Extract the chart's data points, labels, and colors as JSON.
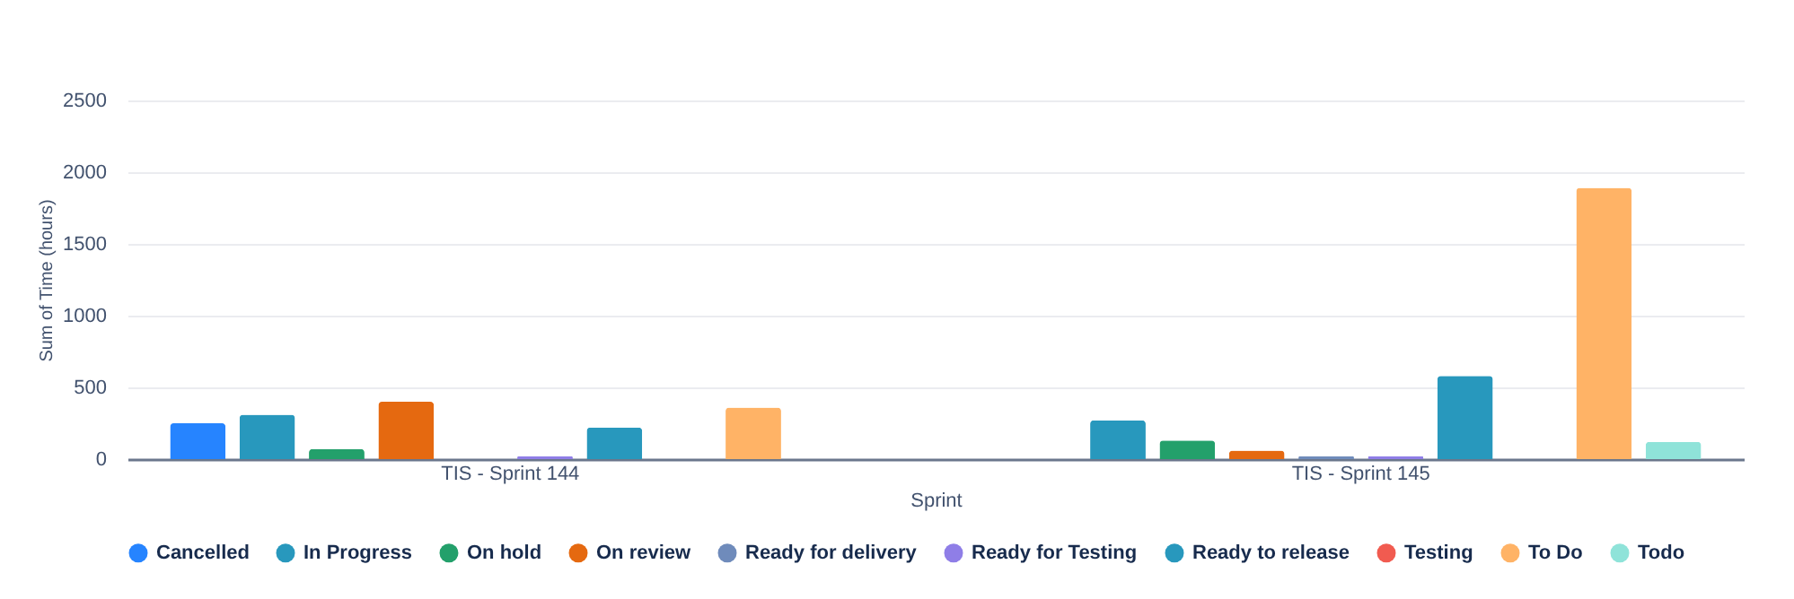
{
  "chart_data": {
    "type": "bar",
    "xlabel": "Sprint",
    "ylabel": "Sum of Time (hours)",
    "categories": [
      "TIS - Sprint 144",
      "TIS - Sprint 145"
    ],
    "series": [
      {
        "name": "Cancelled",
        "color": "#2684ff",
        "values": [
          250,
          null
        ]
      },
      {
        "name": "In Progress",
        "color": "#2898bd",
        "values": [
          310,
          270
        ]
      },
      {
        "name": "On hold",
        "color": "#23a06b",
        "values": [
          70,
          130
        ]
      },
      {
        "name": "On review",
        "color": "#e56910",
        "values": [
          400,
          60
        ]
      },
      {
        "name": "Ready for delivery",
        "color": "#6f8bbb",
        "values": [
          null,
          20
        ]
      },
      {
        "name": "Ready for Testing",
        "color": "#8f7ee7",
        "values": [
          20,
          20
        ]
      },
      {
        "name": "Ready to release",
        "color": "#2898bd",
        "values": [
          220,
          580
        ]
      },
      {
        "name": "Testing",
        "color": "#f15b50",
        "values": [
          null,
          null
        ]
      },
      {
        "name": "To Do",
        "color": "#ffb366",
        "values": [
          360,
          1890
        ]
      },
      {
        "name": "Todo",
        "color": "#8fe3d9",
        "values": [
          null,
          120
        ]
      }
    ],
    "ylim": [
      0,
      2500
    ],
    "yticks": [
      0,
      500,
      {
        "value": 1000,
        "label": "1000"
      },
      {
        "value": 1500,
        "label": "1500"
      },
      {
        "value": 2000,
        "label": "2000"
      },
      {
        "value": 2500,
        "label": "2500"
      }
    ],
    "grid": "y",
    "legend": "bottom"
  }
}
